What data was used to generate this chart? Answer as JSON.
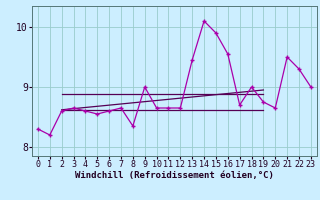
{
  "x_values": [
    0,
    1,
    2,
    3,
    4,
    5,
    6,
    7,
    8,
    9,
    10,
    11,
    12,
    13,
    14,
    15,
    16,
    17,
    18,
    19,
    20,
    21,
    22,
    23
  ],
  "y_main": [
    8.3,
    8.2,
    8.6,
    8.65,
    8.6,
    8.55,
    8.6,
    8.65,
    8.35,
    9.0,
    8.65,
    8.65,
    8.65,
    9.45,
    10.1,
    9.9,
    9.55,
    8.7,
    9.0,
    8.75,
    8.65,
    9.5,
    9.3,
    9.0
  ],
  "trend1_x": [
    2,
    19
  ],
  "trend1_y": [
    8.62,
    8.62
  ],
  "trend2_x": [
    2,
    19
  ],
  "trend2_y": [
    8.88,
    8.88
  ],
  "trend3_x": [
    2,
    19
  ],
  "trend3_y": [
    8.62,
    8.95
  ],
  "bg_color": "#cceeff",
  "line_color": "#aa00aa",
  "trend_color": "#550055",
  "grid_color": "#99cccc",
  "ylim": [
    7.85,
    10.35
  ],
  "xlim": [
    -0.5,
    23.5
  ],
  "yticks": [
    8,
    9,
    10
  ],
  "xlabel": "Windchill (Refroidissement éolien,°C)",
  "xlabel_fontsize": 6.5,
  "tick_fontsize": 6.0,
  "figsize": [
    3.2,
    2.0
  ],
  "dpi": 100
}
